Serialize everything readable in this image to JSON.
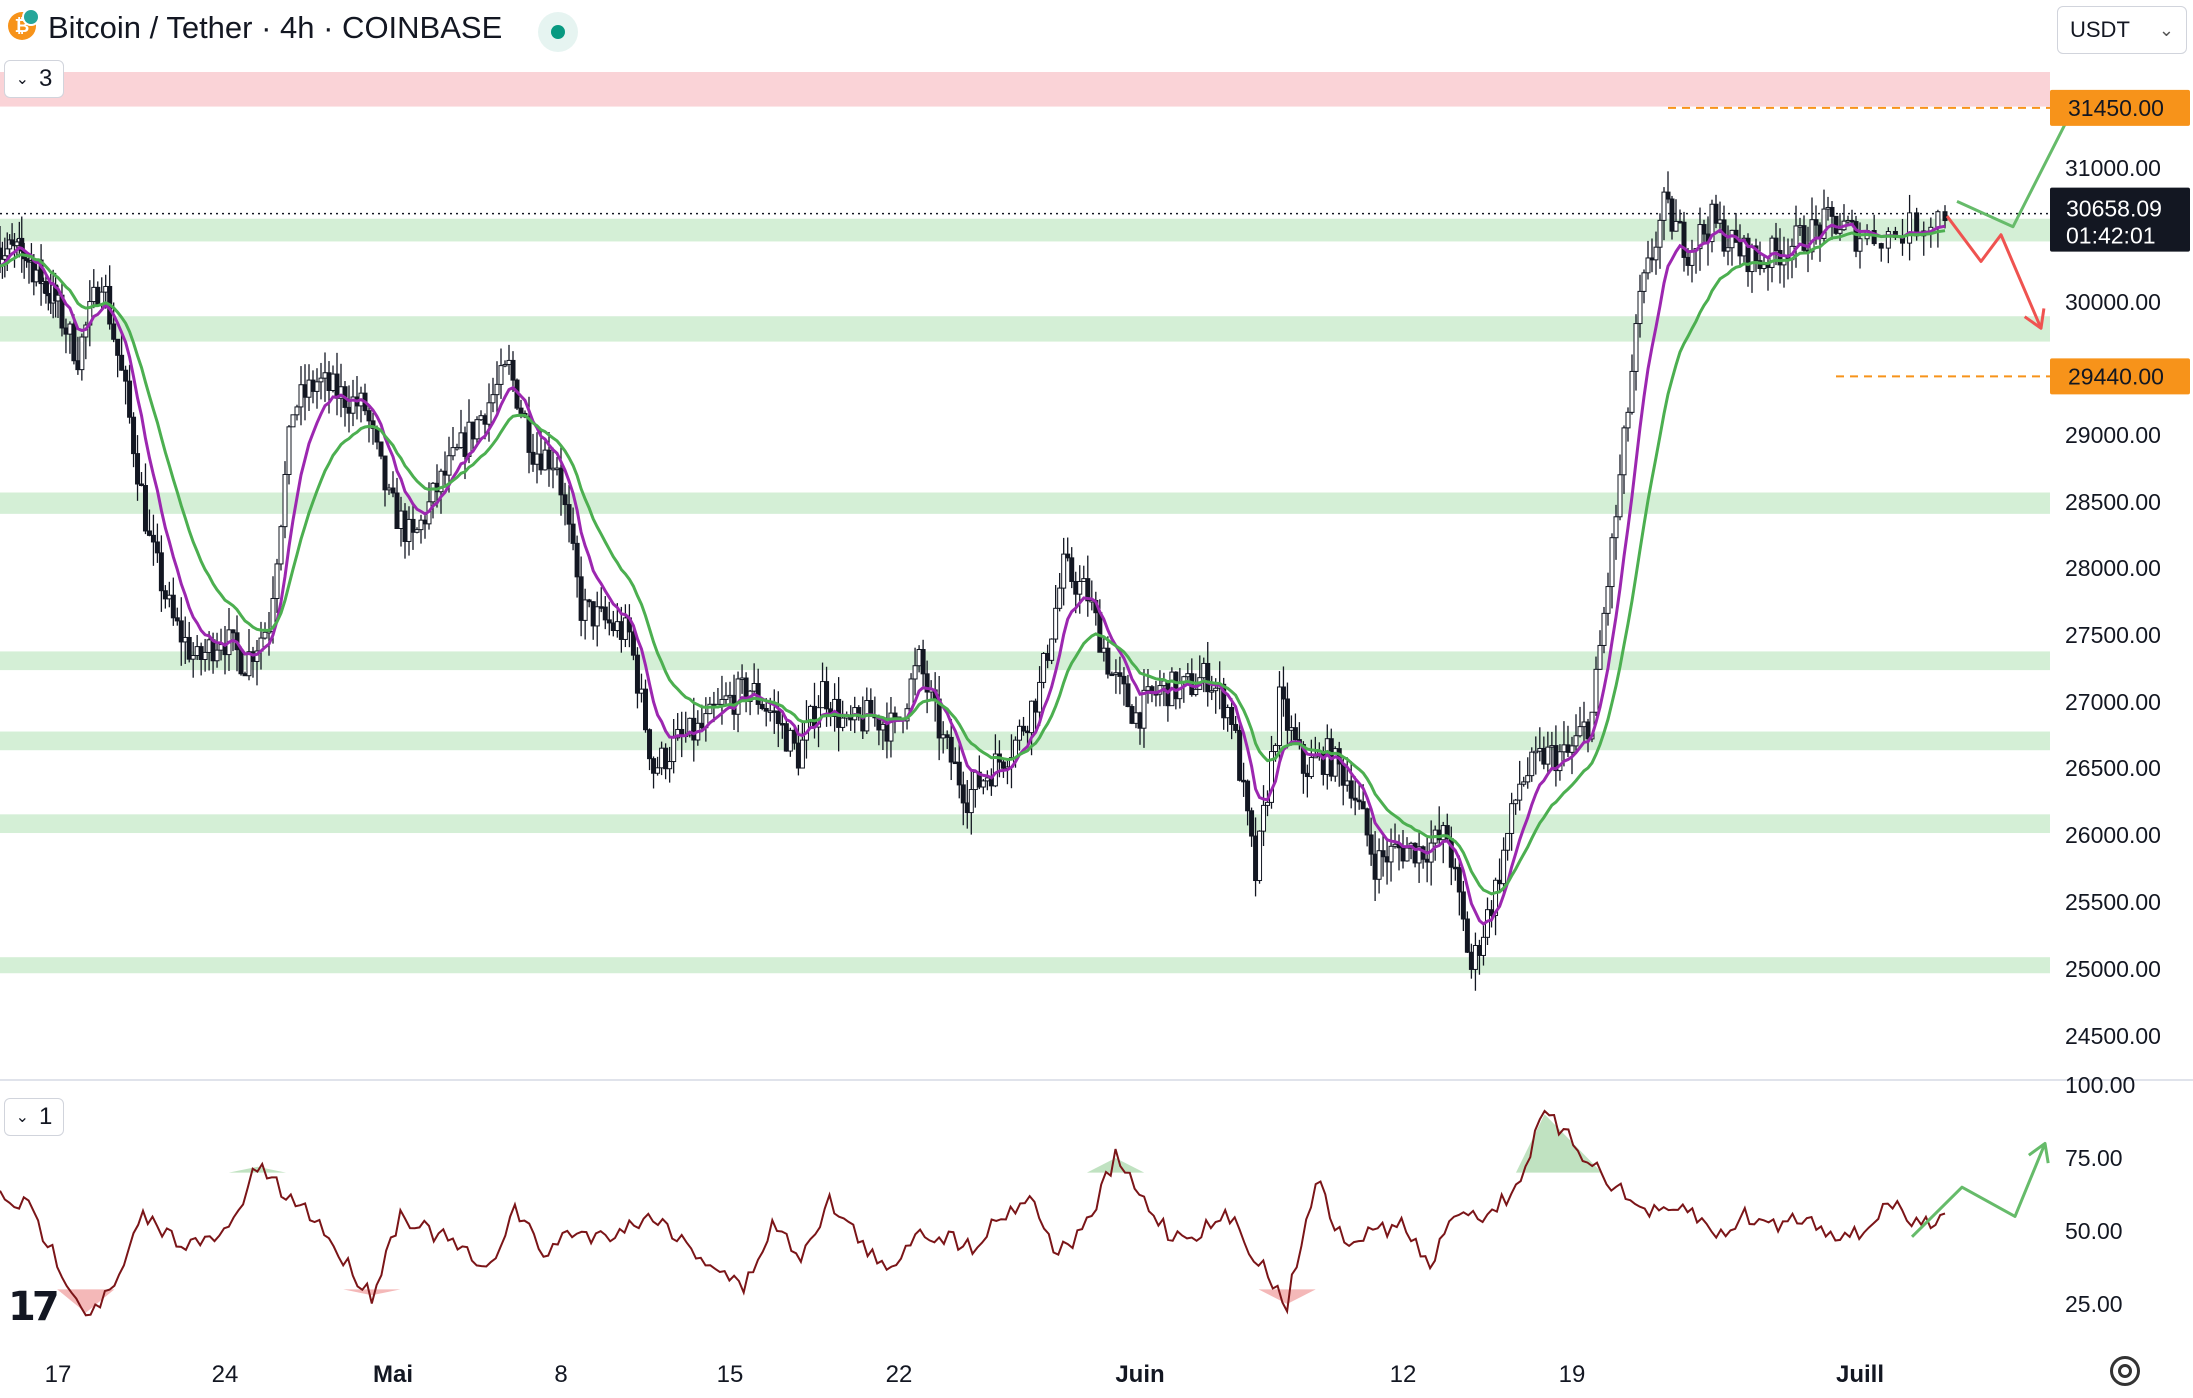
{
  "header": {
    "title": "Bitcoin / Tether · 4h · COINBASE",
    "currency": "USDT",
    "coin_symbol": "₿",
    "main_legend_count": "3",
    "rsi_legend_count": "1"
  },
  "price_tag": {
    "price": "30658.09",
    "countdown": "01:42:01"
  },
  "colors": {
    "green_zone": "#d4efd6",
    "red_zone": "#fad3d7",
    "orange": "#f7931a",
    "ema_fast": "#9c27b0",
    "ema_slow": "#4caf50",
    "rsi": "#7b1518",
    "up_arrow": "#66bb6a",
    "down_arrow": "#ef5350"
  },
  "chart_data": [
    {
      "type": "candlestick",
      "title": "Bitcoin / Tether · 4h · COINBASE",
      "ylim": [
        24000,
        31900
      ],
      "y_ticks": [
        "24500.00",
        "25000.00",
        "25500.00",
        "26000.00",
        "26500.00",
        "27000.00",
        "27500.00",
        "28000.00",
        "28500.00",
        "29000.00",
        "29500.00",
        "30000.00",
        "30500.00",
        "31000.00"
      ],
      "x_ticks": [
        "17",
        "24",
        "Mai",
        "8",
        "15",
        "22",
        "Juin",
        "12",
        "19",
        "Juill"
      ],
      "x_tick_dates": [
        "2023-04-17",
        "2023-04-24",
        "2023-05-01",
        "2023-05-08",
        "2023-05-15",
        "2023-05-22",
        "2023-06-01",
        "2023-06-12",
        "2023-06-19",
        "2023-07-01"
      ],
      "x_range": [
        "2023-04-13",
        "2023-07-05"
      ],
      "price_path": [
        [
          "2023-04-13",
          30400
        ],
        [
          "2023-04-15",
          30350
        ],
        [
          "2023-04-17",
          30000
        ],
        [
          "2023-04-18",
          29600
        ],
        [
          "2023-04-19",
          30200
        ],
        [
          "2023-04-20",
          29300
        ],
        [
          "2023-04-21",
          28200
        ],
        [
          "2023-04-22",
          27600
        ],
        [
          "2023-04-23",
          27300
        ],
        [
          "2023-04-24",
          27500
        ],
        [
          "2023-04-25",
          27300
        ],
        [
          "2023-04-26",
          27600
        ],
        [
          "2023-04-27",
          29200
        ],
        [
          "2023-04-28",
          29400
        ],
        [
          "2023-04-29",
          29300
        ],
        [
          "2023-04-30",
          29200
        ],
        [
          "2023-05-01",
          28500
        ],
        [
          "2023-05-02",
          28200
        ],
        [
          "2023-05-03",
          28600
        ],
        [
          "2023-05-04",
          28900
        ],
        [
          "2023-05-05",
          29200
        ],
        [
          "2023-05-06",
          29500
        ],
        [
          "2023-05-07",
          28900
        ],
        [
          "2023-05-08",
          28800
        ],
        [
          "2023-05-09",
          27700
        ],
        [
          "2023-05-10",
          27600
        ],
        [
          "2023-05-11",
          27500
        ],
        [
          "2023-05-12",
          26500
        ],
        [
          "2023-05-13",
          26700
        ],
        [
          "2023-05-14",
          26800
        ],
        [
          "2023-05-15",
          27000
        ],
        [
          "2023-05-16",
          27100
        ],
        [
          "2023-05-17",
          26900
        ],
        [
          "2023-05-18",
          26600
        ],
        [
          "2023-05-19",
          27100
        ],
        [
          "2023-05-20",
          26800
        ],
        [
          "2023-05-21",
          26900
        ],
        [
          "2023-05-22",
          26800
        ],
        [
          "2023-05-23",
          27300
        ],
        [
          "2023-05-24",
          26700
        ],
        [
          "2023-05-25",
          26300
        ],
        [
          "2023-05-26",
          26500
        ],
        [
          "2023-05-27",
          26700
        ],
        [
          "2023-05-28",
          27100
        ],
        [
          "2023-05-29",
          28000
        ],
        [
          "2023-05-30",
          27800
        ],
        [
          "2023-05-31",
          27200
        ],
        [
          "2023-06-01",
          26900
        ],
        [
          "2023-06-02",
          27100
        ],
        [
          "2023-06-03",
          27100
        ],
        [
          "2023-06-04",
          27200
        ],
        [
          "2023-06-05",
          26900
        ],
        [
          "2023-06-06",
          25700
        ],
        [
          "2023-06-07",
          27000
        ],
        [
          "2023-06-08",
          26500
        ],
        [
          "2023-06-09",
          26600
        ],
        [
          "2023-06-10",
          26400
        ],
        [
          "2023-06-11",
          25800
        ],
        [
          "2023-06-12",
          25900
        ],
        [
          "2023-06-13",
          25900
        ],
        [
          "2023-06-14",
          26000
        ],
        [
          "2023-06-15",
          25000
        ],
        [
          "2023-06-16",
          25600
        ],
        [
          "2023-06-17",
          26400
        ],
        [
          "2023-06-18",
          26600
        ],
        [
          "2023-06-19",
          26600
        ],
        [
          "2023-06-20",
          26900
        ],
        [
          "2023-06-21",
          28400
        ],
        [
          "2023-06-22",
          30000
        ],
        [
          "2023-06-23",
          30700
        ],
        [
          "2023-06-24",
          30400
        ],
        [
          "2023-06-25",
          30600
        ],
        [
          "2023-06-26",
          30400
        ],
        [
          "2023-06-27",
          30300
        ],
        [
          "2023-06-28",
          30400
        ],
        [
          "2023-06-29",
          30500
        ],
        [
          "2023-06-30",
          30600
        ],
        [
          "2023-07-01",
          30500
        ],
        [
          "2023-07-02",
          30500
        ],
        [
          "2023-07-03",
          30658
        ]
      ],
      "green_zones": [
        [
          30450,
          30620
        ],
        [
          29700,
          29890
        ],
        [
          28410,
          28570
        ],
        [
          27240,
          27380
        ],
        [
          26640,
          26780
        ],
        [
          26020,
          26160
        ],
        [
          24970,
          25090
        ]
      ],
      "red_zone": [
        31460,
        31750
      ],
      "levels": [
        {
          "label": "31450.00",
          "value": 31450,
          "from": "2023-06-23"
        },
        {
          "label": "29440.00",
          "value": 29440,
          "from": "2023-06-30"
        }
      ],
      "last_price": 30658.09,
      "scenario_up": [
        [
          "2023-07-03",
          30750
        ],
        [
          "2023-07-04",
          30560
        ],
        [
          "2023-07-05",
          31250
        ],
        [
          "2023-07-05",
          31400
        ]
      ],
      "scenario_down": [
        [
          "2023-07-03",
          30640
        ],
        [
          "2023-07-04",
          30300
        ],
        [
          "2023-07-04",
          30500
        ],
        [
          "2023-07-05",
          29800
        ]
      ]
    },
    {
      "type": "line",
      "title": "",
      "ylim": [
        15,
        100
      ],
      "y_ticks": [
        "25.00",
        "50.00",
        "75.00",
        "100.00"
      ],
      "series": [
        {
          "values": [
            62,
            58,
            40,
            22,
            30,
            55,
            48,
            45,
            50,
            72,
            62,
            55,
            40,
            28,
            56,
            50,
            45,
            35,
            58,
            42,
            50,
            48,
            52,
            55,
            45,
            38,
            30,
            52,
            42,
            60,
            48,
            35,
            50,
            48,
            45,
            55,
            62,
            42,
            52,
            75,
            60,
            48,
            50,
            55,
            40,
            25,
            68,
            45,
            50,
            52,
            38,
            58,
            55,
            65,
            90,
            80,
            70,
            60,
            55,
            58,
            48,
            55,
            52,
            55,
            50,
            48,
            60,
            52,
            56
          ]
        }
      ],
      "scenario_up": [
        [
          0,
          48
        ],
        [
          1,
          65
        ],
        [
          2,
          55
        ],
        [
          3,
          80
        ]
      ]
    }
  ]
}
